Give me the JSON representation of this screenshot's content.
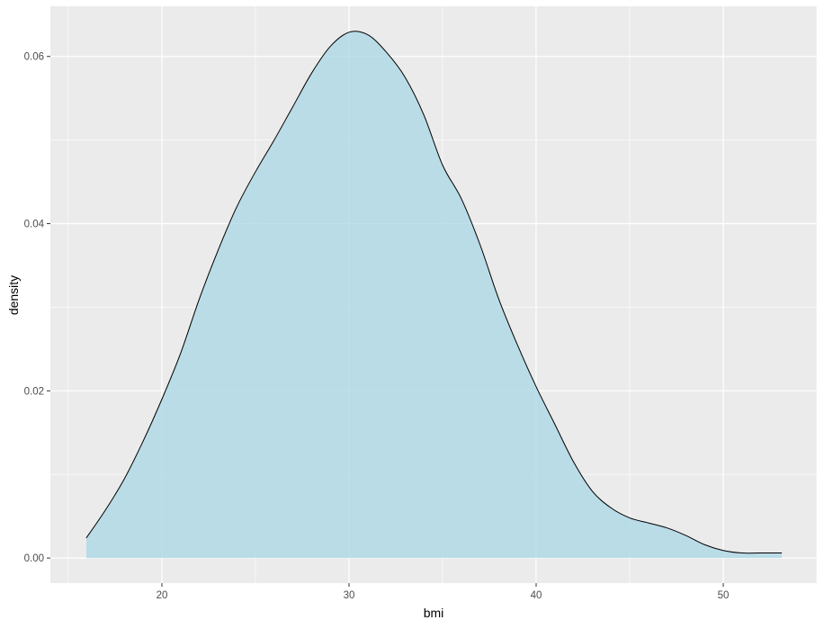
{
  "chart_data": {
    "type": "area",
    "subtype": "density",
    "title": "",
    "xlabel": "bmi",
    "ylabel": "density",
    "xlim": [
      14.04,
      55.0
    ],
    "ylim": [
      -0.003,
      0.066
    ],
    "x_ticks": [
      20,
      30,
      40,
      50
    ],
    "x_tick_labels": [
      "20",
      "30",
      "40",
      "50"
    ],
    "y_ticks": [
      0,
      0.02,
      0.04,
      0.06
    ],
    "y_tick_labels": [
      "0.00",
      "0.02",
      "0.04",
      "0.06"
    ],
    "grid": true,
    "fill_color": "#add8e6",
    "fill_alpha": 0.8,
    "line_color": "#000000",
    "panel_background": "#ebebeb",
    "x": [
      15.96,
      17,
      18,
      19,
      20,
      21,
      22,
      23,
      24,
      25,
      26,
      27,
      28,
      29,
      30,
      31,
      32,
      33,
      34,
      35,
      36,
      37,
      38,
      39,
      40,
      41,
      42,
      43,
      44,
      45,
      46,
      47,
      48,
      49,
      50,
      51,
      52,
      53.13
    ],
    "y": [
      0.0024,
      0.0058,
      0.0095,
      0.014,
      0.019,
      0.0245,
      0.031,
      0.0368,
      0.042,
      0.0462,
      0.05,
      0.054,
      0.058,
      0.0612,
      0.0629,
      0.0626,
      0.0605,
      0.0575,
      0.053,
      0.047,
      0.043,
      0.0375,
      0.031,
      0.0255,
      0.0205,
      0.016,
      0.0115,
      0.008,
      0.006,
      0.0048,
      0.0042,
      0.0036,
      0.0027,
      0.0016,
      0.0009,
      0.0006,
      0.0006,
      0.0006
    ]
  }
}
